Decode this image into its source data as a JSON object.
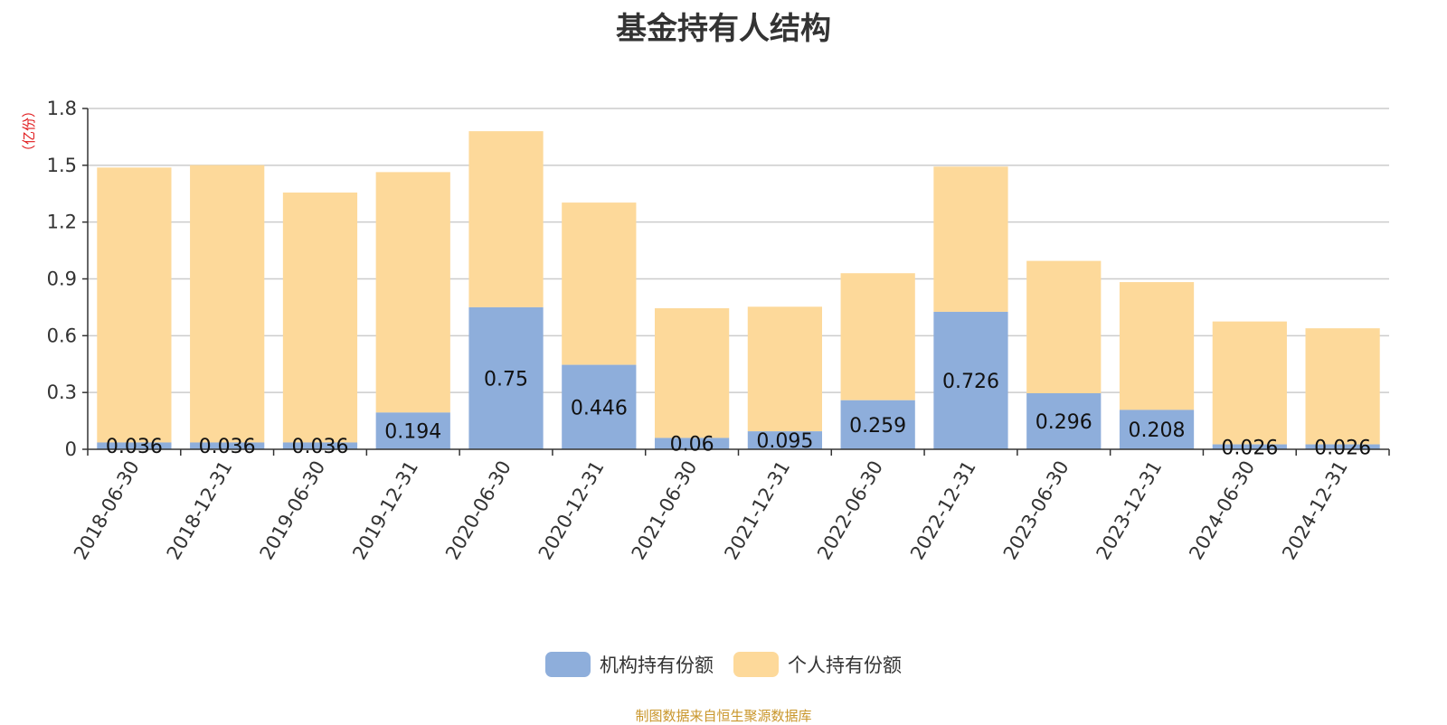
{
  "chart_data": {
    "type": "bar",
    "stacked": true,
    "title": "基金持有人结构",
    "ylabel": "（亿份）",
    "xlabel": "",
    "ylim": [
      0,
      1.8
    ],
    "yticks": [
      "0",
      "0.3",
      "0.6",
      "0.9",
      "1.2",
      "1.5",
      "1.8"
    ],
    "grid": true,
    "legend_position": "bottom",
    "categories": [
      "2018-06-30",
      "2018-12-31",
      "2019-06-30",
      "2019-12-31",
      "2020-06-30",
      "2020-12-31",
      "2021-06-30",
      "2021-12-31",
      "2022-06-30",
      "2022-12-31",
      "2023-06-30",
      "2023-12-31",
      "2024-06-30",
      "2024-12-31"
    ],
    "series": [
      {
        "name": "机构持有份额",
        "color": "#8eaedb",
        "values": [
          0.036,
          0.036,
          0.036,
          0.194,
          0.75,
          0.446,
          0.06,
          0.095,
          0.259,
          0.726,
          0.296,
          0.208,
          0.026,
          0.026
        ],
        "labels": [
          "0.036",
          "0.036",
          "0.036",
          "0.194",
          "0.75",
          "0.446",
          "0.06",
          "0.095",
          "0.259",
          "0.726",
          "0.296",
          "0.208",
          "0.026",
          "0.026"
        ]
      },
      {
        "name": "个人持有份额",
        "color": "#fdd99a",
        "values": [
          1.452,
          1.465,
          1.32,
          1.27,
          0.93,
          0.857,
          0.685,
          0.658,
          0.671,
          0.767,
          0.699,
          0.675,
          0.649,
          0.613
        ]
      }
    ]
  },
  "footer": {
    "source_note": "制图数据来自恒生聚源数据库"
  }
}
